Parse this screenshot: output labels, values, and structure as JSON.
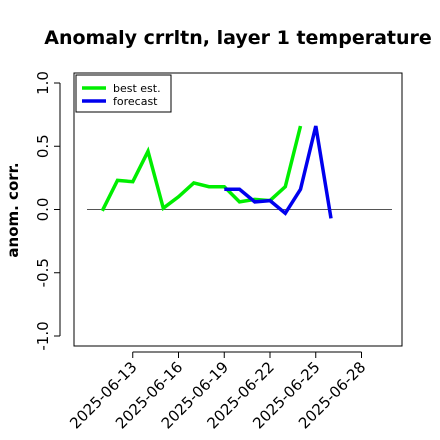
{
  "chart_data": {
    "type": "line",
    "title": "Anomaly crrltn, layer 1 temperature",
    "xlabel": "",
    "ylabel": "anom. corr.",
    "ylim": [
      -1.0,
      1.0
    ],
    "yticks": [
      "-1.0",
      "-0.5",
      "0.0",
      "0.5",
      "1.0"
    ],
    "xlim": [
      "2025-06-10",
      "2025-06-30"
    ],
    "xticks": [
      "2025-06-13",
      "2025-06-16",
      "2025-06-19",
      "2025-06-22",
      "2025-06-25",
      "2025-06-28"
    ],
    "highlight_tick": "2025-06-19",
    "grid": false,
    "reference_line": 0.0,
    "legend_position": "top-left",
    "series": [
      {
        "name": "best est.",
        "color": "#00ee00",
        "x": [
          "2025-06-11",
          "2025-06-12",
          "2025-06-13",
          "2025-06-14",
          "2025-06-15",
          "2025-06-16",
          "2025-06-17",
          "2025-06-18",
          "2025-06-19",
          "2025-06-20",
          "2025-06-21",
          "2025-06-22",
          "2025-06-23",
          "2025-06-24"
        ],
        "values": [
          -0.01,
          0.23,
          0.22,
          0.46,
          0.01,
          0.1,
          0.21,
          0.18,
          0.18,
          0.06,
          0.08,
          0.07,
          0.18,
          0.66
        ]
      },
      {
        "name": "forecast",
        "color": "#0000ee",
        "x": [
          "2025-06-19",
          "2025-06-20",
          "2025-06-21",
          "2025-06-22",
          "2025-06-23",
          "2025-06-24",
          "2025-06-25",
          "2025-06-26"
        ],
        "values": [
          0.16,
          0.16,
          0.06,
          0.07,
          -0.03,
          0.16,
          0.66,
          -0.07
        ]
      }
    ]
  },
  "colors": {
    "tick_label": "#000000",
    "highlight_tick_label": "#228b22",
    "axis": "#000000",
    "zero_line": "#555555"
  }
}
